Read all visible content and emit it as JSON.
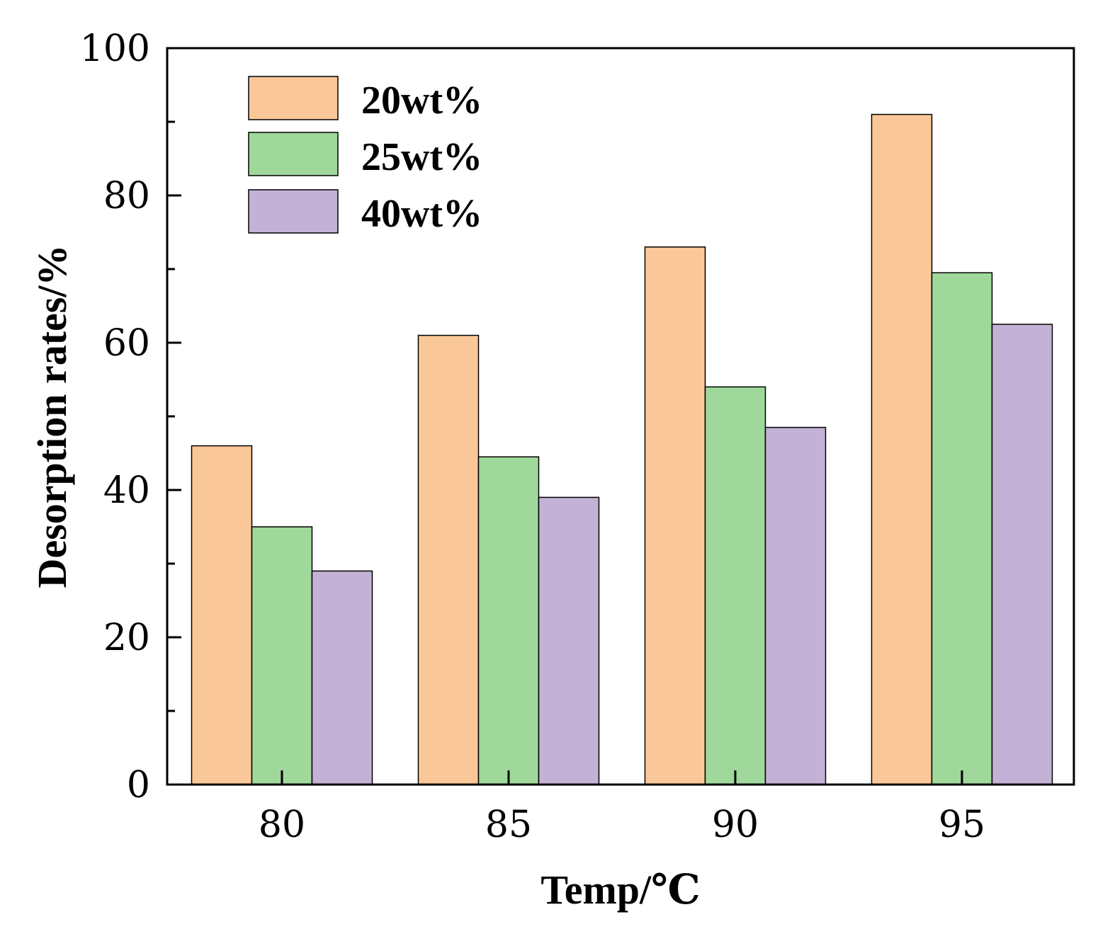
{
  "chart_data": {
    "type": "bar",
    "title": "",
    "xlabel": "Temp/℃",
    "ylabel": "Desorption rates/%",
    "categories": [
      "80",
      "85",
      "90",
      "95"
    ],
    "series": [
      {
        "name": "20wt%",
        "color": "#FAC898",
        "values": [
          46,
          61,
          73,
          91
        ]
      },
      {
        "name": "25wt%",
        "color": "#A0D89C",
        "values": [
          35,
          44.5,
          54,
          69.5
        ]
      },
      {
        "name": "40wt%",
        "color": "#C3B2D6",
        "values": [
          29,
          39,
          48.5,
          62.5
        ]
      }
    ],
    "ylim": [
      0,
      100
    ],
    "yticks": [
      "0",
      "20",
      "40",
      "60",
      "80",
      "100"
    ],
    "grid": false,
    "legend_position": "top-left"
  }
}
